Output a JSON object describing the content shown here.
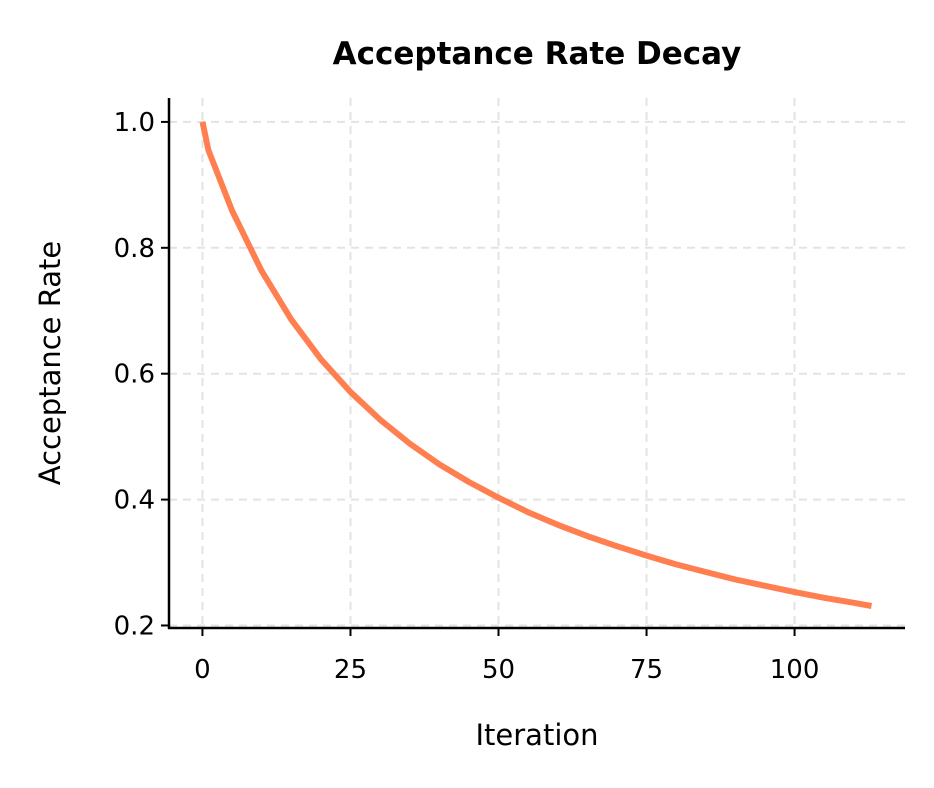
{
  "chart_data": {
    "type": "line",
    "title": "Acceptance Rate Decay",
    "xlabel": "Iteration",
    "ylabel": "Acceptance Rate",
    "xlim": [
      -5.65,
      118.65
    ],
    "ylim": [
      0.196,
      1.038
    ],
    "xticks": [
      0,
      25,
      50,
      75,
      100
    ],
    "xtick_labels": [
      "0",
      "25",
      "50",
      "75",
      "100"
    ],
    "yticks": [
      0.2,
      0.4,
      0.6,
      0.8,
      1.0
    ],
    "ytick_labels": [
      "0.2",
      "0.4",
      "0.6",
      "0.8",
      "1.0"
    ],
    "grid": true,
    "series": [
      {
        "color": "#FF7F50",
        "x": [
          0,
          1,
          5,
          10,
          15,
          20,
          25,
          30,
          35,
          40,
          45,
          50,
          55,
          60,
          65,
          70,
          75,
          80,
          85,
          90,
          95,
          100,
          105,
          110,
          113
        ],
        "y": [
          1.0,
          0.955,
          0.859,
          0.763,
          0.686,
          0.623,
          0.571,
          0.527,
          0.489,
          0.456,
          0.428,
          0.403,
          0.38,
          0.36,
          0.342,
          0.326,
          0.311,
          0.297,
          0.285,
          0.273,
          0.263,
          0.253,
          0.244,
          0.236,
          0.231
        ]
      }
    ]
  }
}
